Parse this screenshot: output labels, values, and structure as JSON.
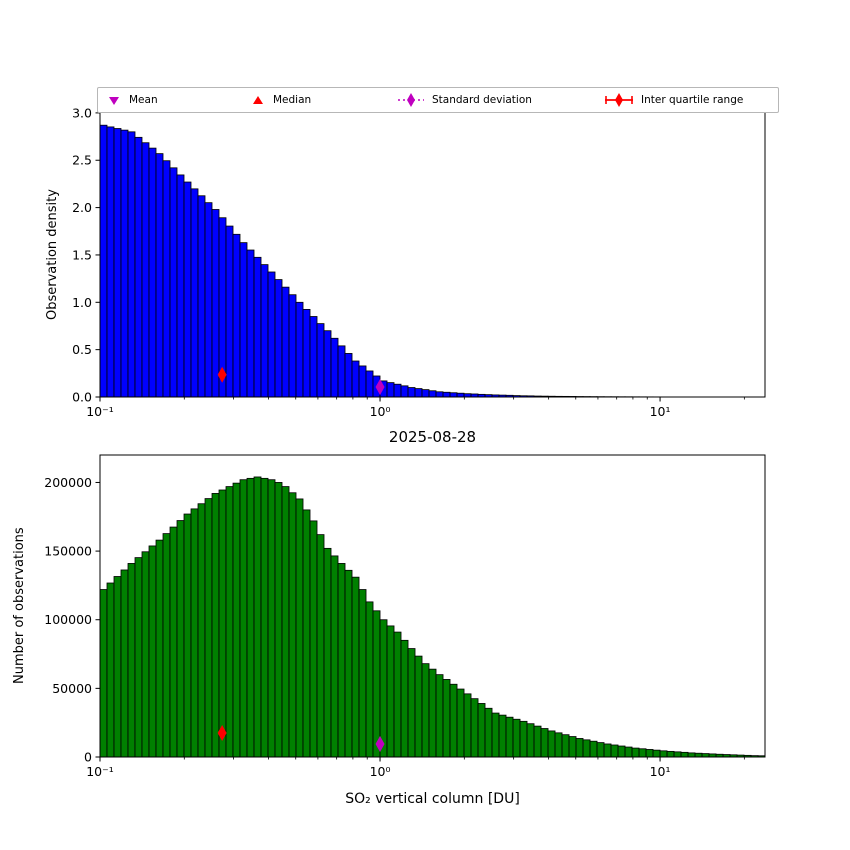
{
  "legend": {
    "items": [
      {
        "label": "Mean",
        "marker": "triangle-down",
        "color": "#bf00bf"
      },
      {
        "label": "Median",
        "marker": "triangle-up",
        "color": "#ff0000"
      },
      {
        "label": "Standard deviation",
        "marker": "diamond-dotted-line",
        "color": "#bf00bf"
      },
      {
        "label": "Inter quartile range",
        "marker": "diamond-solid-line",
        "color": "#ff0000"
      }
    ]
  },
  "chart_data": [
    {
      "type": "bar",
      "name": "observation-density-histogram",
      "x_scale": "log",
      "xlim": [
        0.1,
        23.7
      ],
      "ylim": [
        0,
        3.02
      ],
      "bins_per_decade": 40,
      "bin_start": 0.1,
      "ylabel": "Observation density",
      "ytick_values": [
        0,
        0.5,
        1.0,
        1.5,
        2.0,
        2.5,
        3.0
      ],
      "ytick_labels": [
        "0.0",
        "0.5",
        "1.0",
        "1.5",
        "2.0",
        "2.5",
        "3.0"
      ],
      "xtick_values": [
        0.1,
        1,
        10
      ],
      "xtick_labels": [
        "10⁻¹",
        "10⁰",
        "10¹"
      ],
      "bar_color": "#0000ff",
      "edge_color": "#000000",
      "values": [
        2.87,
        2.852,
        2.835,
        2.818,
        2.8,
        2.742,
        2.685,
        2.628,
        2.57,
        2.495,
        2.42,
        2.345,
        2.27,
        2.198,
        2.125,
        2.052,
        1.98,
        1.893,
        1.805,
        1.718,
        1.63,
        1.552,
        1.475,
        1.398,
        1.32,
        1.24,
        1.16,
        1.08,
        1.0,
        0.925,
        0.85,
        0.775,
        0.7,
        0.62,
        0.54,
        0.46,
        0.38,
        0.328,
        0.275,
        0.222,
        0.17,
        0.152,
        0.135,
        0.118,
        0.1,
        0.089,
        0.078,
        0.066,
        0.055,
        0.05,
        0.045,
        0.04,
        0.035,
        0.032,
        0.028,
        0.025,
        0.022,
        0.02,
        0.018,
        0.015,
        0.013,
        0.012,
        0.01,
        0.009,
        0.008,
        0.007,
        0.0065,
        0.006,
        0.005,
        0.0045,
        0.004,
        0.0035,
        0.003,
        0.0028,
        0.0025,
        0.0023,
        0.002,
        0.0018,
        0.0015,
        0.0013,
        0.001,
        0.0008,
        0.0007,
        0.0006,
        0.0005,
        0.0005,
        0.0004,
        0.0004,
        0.0003,
        0.0003,
        0.0002,
        0.0002,
        0.0001,
        0.0001,
        0.0001
      ],
      "markers": [
        {
          "name": "inter-quartile-range",
          "shape": "thin-diamond",
          "color": "#ff0000",
          "x": 0.273,
          "y": 0.235
        },
        {
          "name": "standard-deviation",
          "shape": "thin-diamond",
          "color": "#bf00bf",
          "x": 1.0,
          "y": 0.105
        }
      ]
    },
    {
      "type": "bar",
      "name": "observation-count-histogram",
      "title": "2025-08-28",
      "x_scale": "log",
      "xlim": [
        0.1,
        23.7
      ],
      "ylim": [
        0,
        220000
      ],
      "bins_per_decade": 40,
      "bin_start": 0.1,
      "ylabel": "Number of observations",
      "xlabel": "SO₂ vertical column [DU]",
      "ytick_values": [
        0,
        50000,
        100000,
        150000,
        200000
      ],
      "ytick_labels": [
        "0",
        "50000",
        "100000",
        "150000",
        "200000"
      ],
      "xtick_values": [
        0.1,
        1,
        10
      ],
      "xtick_labels": [
        "10⁻¹",
        "10⁰",
        "10¹"
      ],
      "bar_color": "#008000",
      "edge_color": "#000000",
      "values": [
        122000,
        126750,
        131500,
        136250,
        141000,
        145250,
        149500,
        153750,
        158000,
        162750,
        167500,
        172250,
        177000,
        180750,
        184500,
        188250,
        192000,
        194500,
        197000,
        199500,
        202000,
        203000,
        204000,
        203000,
        202000,
        200000,
        197000,
        192500,
        188000,
        180000,
        172000,
        162000,
        152000,
        146500,
        141000,
        136000,
        131000,
        122000,
        113000,
        106500,
        100000,
        95500,
        91000,
        85000,
        79000,
        73500,
        68000,
        64000,
        60000,
        56500,
        53000,
        49500,
        46000,
        42500,
        39000,
        35500,
        32000,
        30500,
        29000,
        27500,
        26000,
        24250,
        22500,
        20750,
        19000,
        17600,
        16250,
        14900,
        13500,
        12500,
        11500,
        10500,
        9500,
        8750,
        8000,
        7250,
        6500,
        6000,
        5500,
        5000,
        4500,
        4100,
        3750,
        3400,
        3000,
        2750,
        2500,
        2250,
        2000,
        1800,
        1600,
        1400,
        1200,
        1000,
        900
      ],
      "markers": [
        {
          "name": "inter-quartile-range",
          "shape": "thin-diamond",
          "color": "#ff0000",
          "x": 0.273,
          "y": 17500
        },
        {
          "name": "standard-deviation",
          "shape": "thin-diamond",
          "color": "#bf00bf",
          "x": 1.0,
          "y": 9500
        }
      ]
    }
  ]
}
